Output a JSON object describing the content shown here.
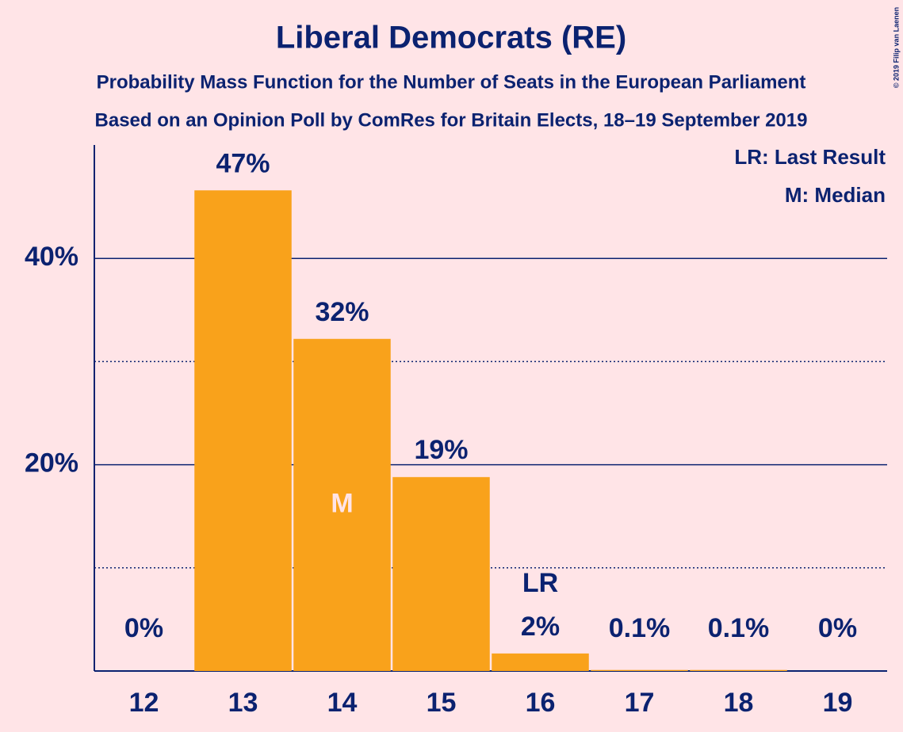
{
  "chart_data": {
    "type": "bar",
    "title": "Liberal Democrats (RE)",
    "subtitle": "Probability Mass Function for the Number of Seats in the European Parliament",
    "subtitle2": "Based on an Opinion Poll by ComRes for Britain Elects, 18–19 September 2019",
    "copyright": "© 2019 Filip van Laenen",
    "categories": [
      "12",
      "13",
      "14",
      "15",
      "16",
      "17",
      "18",
      "19"
    ],
    "values": [
      0,
      46.6,
      32.2,
      18.8,
      1.7,
      0.1,
      0.1,
      0
    ],
    "value_labels": [
      "0%",
      "47%",
      "32%",
      "19%",
      "2%",
      "0.1%",
      "0.1%",
      "0%"
    ],
    "color": "#f9a21b",
    "ylim": [
      0,
      51
    ],
    "yticks": [
      {
        "value": 20,
        "label": "20%"
      },
      {
        "value": 40,
        "label": "40%"
      }
    ],
    "minor_yticks": [
      10,
      30
    ],
    "grid": true,
    "markers": [
      {
        "label": "LR",
        "category": "16"
      },
      {
        "label": "M",
        "category": "14"
      }
    ],
    "legend": [
      "LR: Last Result",
      "M: Median"
    ]
  }
}
